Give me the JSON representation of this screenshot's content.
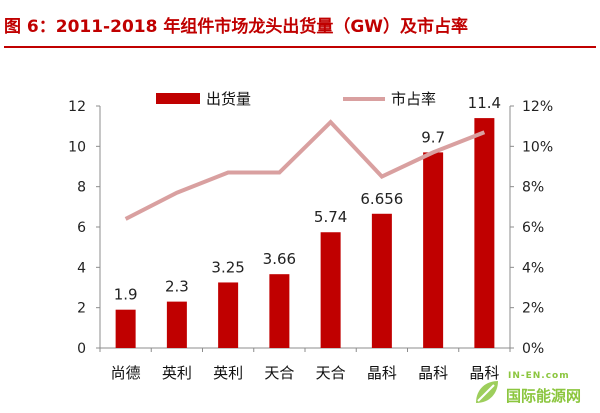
{
  "title": "图 6：2011-2018 年组件市场龙头出货量（GW）及市占率",
  "colors": {
    "bar": "#c00000",
    "line": "#d9a0a0",
    "accent": "#c00000",
    "watermark": "#8cc63f"
  },
  "watermark": {
    "site": "IN-EN.com",
    "name": "国际能源网"
  },
  "chart_data": {
    "type": "bar",
    "categories": [
      "尚德",
      "英利",
      "英利",
      "天合",
      "天合",
      "晶科",
      "晶科",
      "晶科"
    ],
    "series": [
      {
        "name": "出货量",
        "type": "bar",
        "axis": "left",
        "values": [
          1.9,
          2.3,
          3.25,
          3.66,
          5.74,
          6.656,
          9.7,
          11.4
        ],
        "labels": [
          "1.9",
          "2.3",
          "3.25",
          "3.66",
          "5.74",
          "6.656",
          "9.7",
          "11.4"
        ]
      },
      {
        "name": "市占率",
        "type": "line",
        "axis": "right",
        "values": [
          6.4,
          7.7,
          8.7,
          8.7,
          11.2,
          8.5,
          9.7,
          10.7
        ]
      }
    ],
    "y_left": {
      "ylim": [
        0,
        12
      ],
      "ticks": [
        "0",
        "2",
        "4",
        "6",
        "8",
        "10",
        "12"
      ]
    },
    "y_right": {
      "ylim": [
        0,
        12
      ],
      "ticks": [
        "0%",
        "2%",
        "4%",
        "6%",
        "8%",
        "10%",
        "12%"
      ]
    },
    "grid": false,
    "legend": "top"
  }
}
